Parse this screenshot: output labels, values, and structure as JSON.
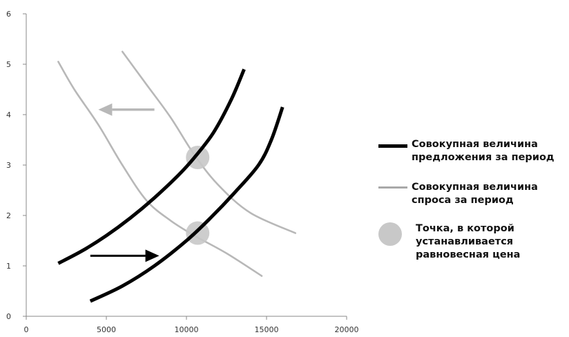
{
  "chart_data": {
    "type": "line",
    "title": "",
    "xlabel": "",
    "ylabel": "",
    "xlim": [
      0,
      20000
    ],
    "ylim": [
      0,
      6
    ],
    "x_ticks": [
      "0",
      "5000",
      "10000",
      "15000",
      "20000"
    ],
    "y_ticks": [
      "0",
      "1",
      "2",
      "3",
      "4",
      "5",
      "6"
    ],
    "grid": false,
    "legend_placement": "right",
    "series": [
      {
        "role": "supply",
        "color": "#000000",
        "points": [
          [
            2000,
            1.05
          ],
          [
            3500,
            1.3
          ],
          [
            5000,
            1.6
          ],
          [
            6500,
            1.95
          ],
          [
            8000,
            2.35
          ],
          [
            9500,
            2.8
          ],
          [
            10500,
            3.15
          ],
          [
            11700,
            3.65
          ],
          [
            12800,
            4.3
          ],
          [
            13600,
            4.9
          ]
        ]
      },
      {
        "role": "supply",
        "color": "#000000",
        "points": [
          [
            4000,
            0.3
          ],
          [
            6000,
            0.6
          ],
          [
            8000,
            1.0
          ],
          [
            10000,
            1.5
          ],
          [
            11500,
            1.95
          ],
          [
            13000,
            2.45
          ],
          [
            14500,
            3.0
          ],
          [
            15300,
            3.5
          ],
          [
            16000,
            4.15
          ]
        ]
      },
      {
        "role": "demand",
        "color": "#b8b8b8",
        "points": [
          [
            6000,
            5.25
          ],
          [
            7500,
            4.6
          ],
          [
            9000,
            3.95
          ],
          [
            10500,
            3.2
          ],
          [
            12000,
            2.6
          ],
          [
            14000,
            2.05
          ],
          [
            16800,
            1.65
          ]
        ]
      },
      {
        "role": "demand",
        "color": "#b8b8b8",
        "points": [
          [
            2000,
            5.05
          ],
          [
            3000,
            4.5
          ],
          [
            4500,
            3.8
          ],
          [
            6000,
            3.0
          ],
          [
            7500,
            2.3
          ],
          [
            9000,
            1.9
          ],
          [
            10500,
            1.6
          ],
          [
            12500,
            1.25
          ],
          [
            14700,
            0.8
          ]
        ]
      }
    ],
    "equilibrium_points": [
      [
        10700,
        3.15
      ],
      [
        10700,
        1.65
      ]
    ],
    "arrows": [
      {
        "from": [
          8000,
          4.1
        ],
        "to": [
          4500,
          4.1
        ],
        "color": "#b8b8b8"
      },
      {
        "from": [
          4000,
          1.2
        ],
        "to": [
          8300,
          1.2
        ],
        "color": "#000000"
      }
    ]
  },
  "legend": [
    {
      "kind": "line",
      "color": "#000000",
      "label": "Совокупная величина\nпредложения за период"
    },
    {
      "kind": "line",
      "color": "#a8a8a8",
      "label": "Совокупная величина\nспроса за период"
    },
    {
      "kind": "dot",
      "color": "#c8c8c8",
      "label": "Точка, в которой\nустанавливается\nравновесная цена"
    }
  ]
}
